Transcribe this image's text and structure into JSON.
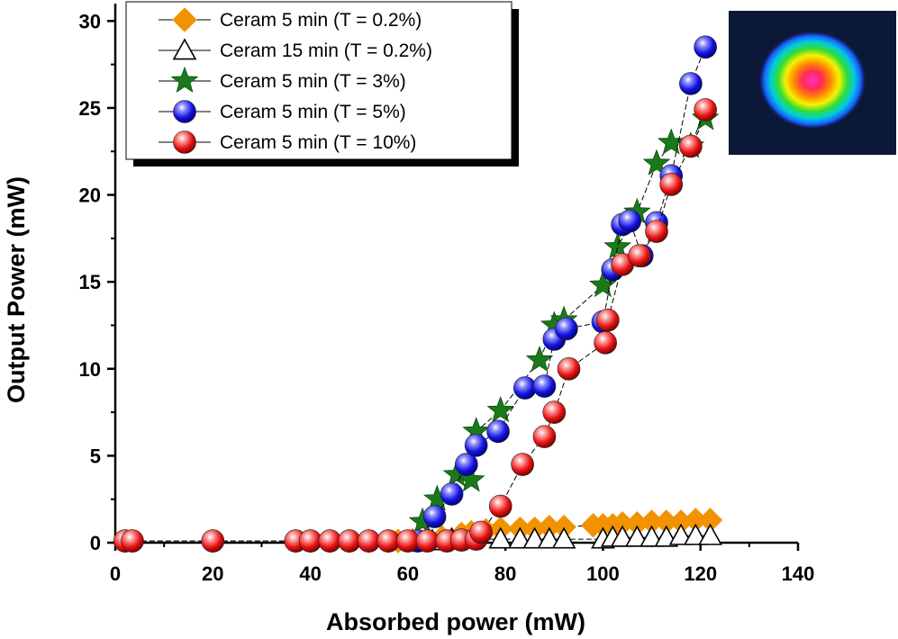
{
  "chart_data": {
    "type": "scatter",
    "title": "",
    "xlabel": "Absorbed power (mW)",
    "ylabel": "Output Power (mW)",
    "xlim": [
      0,
      140
    ],
    "ylim": [
      0,
      31
    ],
    "xticks": [
      0,
      20,
      40,
      60,
      80,
      100,
      120,
      140
    ],
    "yticks": [
      0,
      5,
      10,
      15,
      20,
      25,
      30
    ],
    "grid": false,
    "legend_position": "top-left",
    "inset": "beam-profile",
    "series": [
      {
        "name": "Ceram 5 min (T = 0.2%)",
        "marker": "diamond",
        "color": "#f39200",
        "x": [
          2,
          3.5,
          20,
          37,
          40,
          44,
          48,
          52,
          56,
          58,
          61,
          64,
          67,
          71,
          73,
          76,
          79,
          83,
          86,
          89,
          92,
          98,
          100,
          102,
          104,
          107,
          110,
          113,
          116,
          119,
          122
        ],
        "y": [
          0.1,
          0.1,
          0.1,
          0.1,
          0.1,
          0.1,
          0.1,
          0.1,
          0.1,
          0.1,
          0.15,
          0.2,
          0.3,
          0.5,
          0.6,
          0.7,
          0.8,
          0.8,
          0.8,
          0.9,
          0.9,
          1.0,
          1.0,
          1.0,
          1.1,
          1.1,
          1.2,
          1.2,
          1.2,
          1.3,
          1.3
        ]
      },
      {
        "name": "Ceram 15 min (T = 0.2%)",
        "marker": "triangle",
        "color": "#ffffff",
        "x": [
          65,
          69,
          73,
          79,
          83,
          86,
          89,
          92,
          100,
          102,
          104,
          107,
          110,
          113,
          116,
          119,
          122
        ],
        "y": [
          0.1,
          0.2,
          0.2,
          0.2,
          0.2,
          0.2,
          0.2,
          0.2,
          0.2,
          0.3,
          0.3,
          0.3,
          0.3,
          0.3,
          0.4,
          0.4,
          0.4
        ]
      },
      {
        "name": "Ceram 5 min (T = 3%)",
        "marker": "star",
        "color": "#1a7a1a",
        "x": [
          63,
          66,
          70,
          73,
          74,
          79,
          87,
          90,
          92,
          100,
          103,
          107,
          111,
          114,
          118,
          121
        ],
        "y": [
          1.2,
          2.5,
          3.9,
          3.6,
          6.4,
          7.6,
          10.5,
          12.5,
          12.8,
          14.8,
          17.0,
          19.0,
          21.8,
          23.0,
          22.8,
          24.4
        ]
      },
      {
        "name": "Ceram 5 min (T = 5%)",
        "marker": "sphere",
        "color": "#1a1aee",
        "x": [
          62,
          65.5,
          69,
          72,
          74,
          78.5,
          84,
          88,
          90,
          92.5,
          100,
          102,
          104,
          105.5,
          108,
          111,
          114,
          118,
          121
        ],
        "y": [
          0.1,
          1.5,
          2.8,
          4.5,
          5.6,
          6.4,
          8.9,
          9.0,
          11.7,
          12.3,
          12.7,
          15.7,
          18.3,
          18.5,
          16.5,
          18.4,
          21.1,
          26.4,
          28.5
        ]
      },
      {
        "name": "Ceram 5 min (T = 10%)",
        "marker": "sphere",
        "color": "#ee1a1a",
        "x": [
          2,
          3.5,
          20,
          37,
          40,
          44,
          48,
          52,
          56,
          60,
          64,
          68,
          71,
          74,
          75,
          79,
          83.5,
          88,
          90,
          93,
          100.5,
          101,
          104,
          107.5,
          111,
          114,
          118,
          121
        ],
        "y": [
          0.1,
          0.1,
          0.1,
          0.1,
          0.1,
          0.1,
          0.1,
          0.1,
          0.1,
          0.1,
          0.1,
          0.1,
          0.15,
          0.2,
          0.6,
          2.1,
          4.5,
          6.1,
          7.5,
          10.0,
          11.5,
          12.8,
          16.0,
          16.5,
          17.9,
          20.6,
          22.8,
          24.9
        ]
      }
    ]
  }
}
